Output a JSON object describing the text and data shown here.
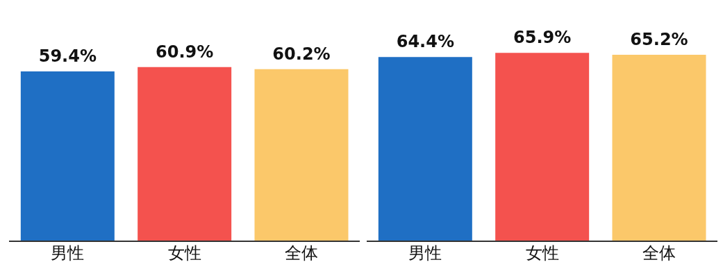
{
  "chart_data": [
    {
      "type": "bar",
      "categories": [
        "男性",
        "女性",
        "全体"
      ],
      "values": [
        59.4,
        60.9,
        60.2
      ],
      "colors": [
        "#1f6fc4",
        "#f4524e",
        "#fbc86a"
      ],
      "value_labels": [
        "59.4%",
        "60.9%",
        "60.2%"
      ],
      "tick_labels": "x",
      "grid": false,
      "legend": false
    },
    {
      "type": "bar",
      "categories": [
        "男性",
        "女性",
        "全体"
      ],
      "values": [
        64.4,
        65.9,
        65.2
      ],
      "colors": [
        "#1f6fc4",
        "#f4524e",
        "#fbc86a"
      ],
      "value_labels": [
        "64.4%",
        "65.9%",
        "65.2%"
      ],
      "tick_labels": "x",
      "grid": false,
      "legend": false
    }
  ]
}
